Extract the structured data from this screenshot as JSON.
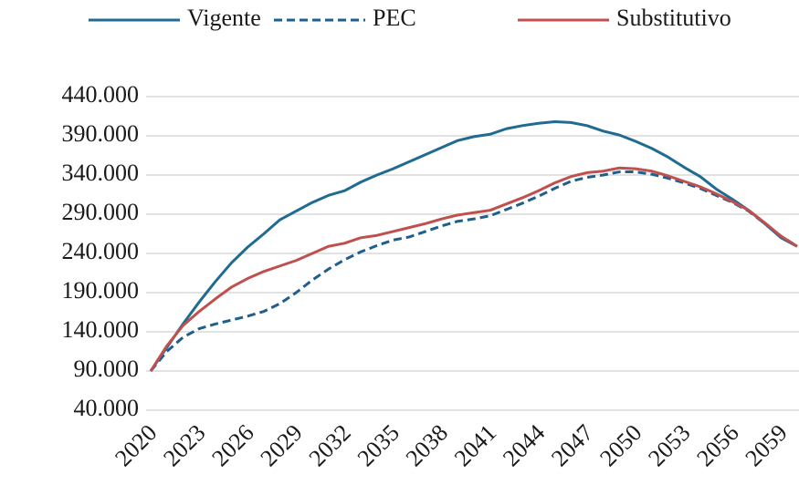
{
  "chart_data": {
    "type": "line",
    "categories": [
      "2020",
      null,
      null,
      "2023",
      null,
      null,
      "2026",
      null,
      null,
      "2029",
      null,
      null,
      "2032",
      null,
      null,
      "2035",
      null,
      null,
      "2038",
      null,
      null,
      "2041",
      null,
      null,
      "2044",
      null,
      null,
      "2047",
      null,
      null,
      "2050",
      null,
      null,
      "2053",
      null,
      null,
      "2056",
      null,
      null,
      "2059",
      null
    ],
    "series": [
      {
        "name": "Vigente",
        "color": "#1f6b91",
        "style": "solid",
        "values": [
          90000,
          120000,
          150000,
          178000,
          204000,
          228000,
          248000,
          265000,
          283000,
          294000,
          305000,
          314000,
          320000,
          331000,
          340000,
          348000,
          357000,
          366000,
          375000,
          384000,
          389000,
          392000,
          399000,
          403000,
          406000,
          408000,
          407000,
          403000,
          396000,
          391000,
          383000,
          374000,
          363000,
          350000,
          338000,
          322000,
          309000,
          295000,
          278000,
          260000,
          249000
        ]
      },
      {
        "name": "PEC",
        "color": "#1f5f8b",
        "style": "dashed",
        "values": [
          90000,
          115000,
          133000,
          144000,
          150000,
          155000,
          160000,
          166000,
          176000,
          190000,
          206000,
          220000,
          232000,
          242000,
          250000,
          257000,
          261000,
          268000,
          275000,
          281000,
          284000,
          288000,
          296000,
          304000,
          313000,
          323000,
          332000,
          337000,
          340000,
          344000,
          344000,
          341000,
          336000,
          330000,
          323000,
          314000,
          305000,
          294000,
          278000,
          262000,
          249000
        ]
      },
      {
        "name": "Substitutivo",
        "color": "#c0504d",
        "style": "solid",
        "values": [
          90000,
          122000,
          148000,
          166000,
          182000,
          197000,
          208000,
          217000,
          224000,
          231000,
          240000,
          249000,
          253000,
          260000,
          263000,
          268000,
          273000,
          278000,
          284000,
          289000,
          292000,
          295000,
          303000,
          311000,
          320000,
          330000,
          338000,
          343000,
          345000,
          349000,
          348000,
          345000,
          339000,
          332000,
          325000,
          316000,
          306000,
          295000,
          279000,
          262000,
          249000
        ]
      }
    ],
    "ylim": [
      40000,
      440000
    ],
    "yticks": [
      {
        "value": 40000,
        "label": "40.000"
      },
      {
        "value": 90000,
        "label": "90.000"
      },
      {
        "value": 140000,
        "label": "140.000"
      },
      {
        "value": 190000,
        "label": "190.000"
      },
      {
        "value": 240000,
        "label": "240.000"
      },
      {
        "value": 290000,
        "label": "290.000"
      },
      {
        "value": 340000,
        "label": "340.000"
      },
      {
        "value": 390000,
        "label": "390.000"
      },
      {
        "value": 440000,
        "label": "440.000"
      }
    ],
    "grid": true,
    "legend": "top"
  }
}
